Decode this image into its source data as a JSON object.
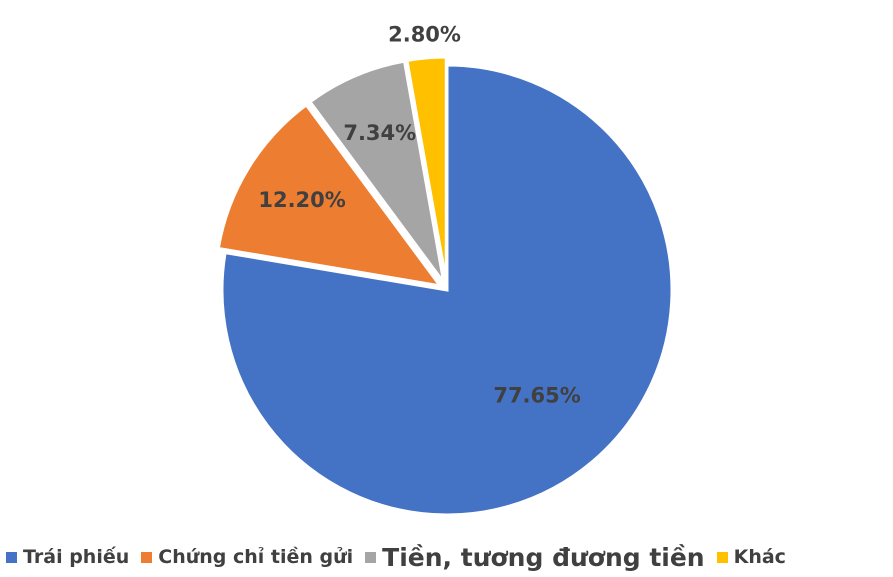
{
  "chart_data": {
    "type": "pie",
    "title": "",
    "slices": [
      {
        "name": "Trái phiếu",
        "value": 77.65,
        "label": "77.65%",
        "color": "#4472C4"
      },
      {
        "name": "Chứng chỉ tiền gửi",
        "value": 12.2,
        "label": "12.20%",
        "color": "#ED7D31"
      },
      {
        "name": "Tiền, tương đương tiền",
        "value": 7.34,
        "label": "7.34%",
        "color": "#A5A5A5"
      },
      {
        "name": "Khác",
        "value": 2.8,
        "label": "2.80%",
        "color": "#FFC000"
      }
    ],
    "legend_position": "bottom"
  }
}
